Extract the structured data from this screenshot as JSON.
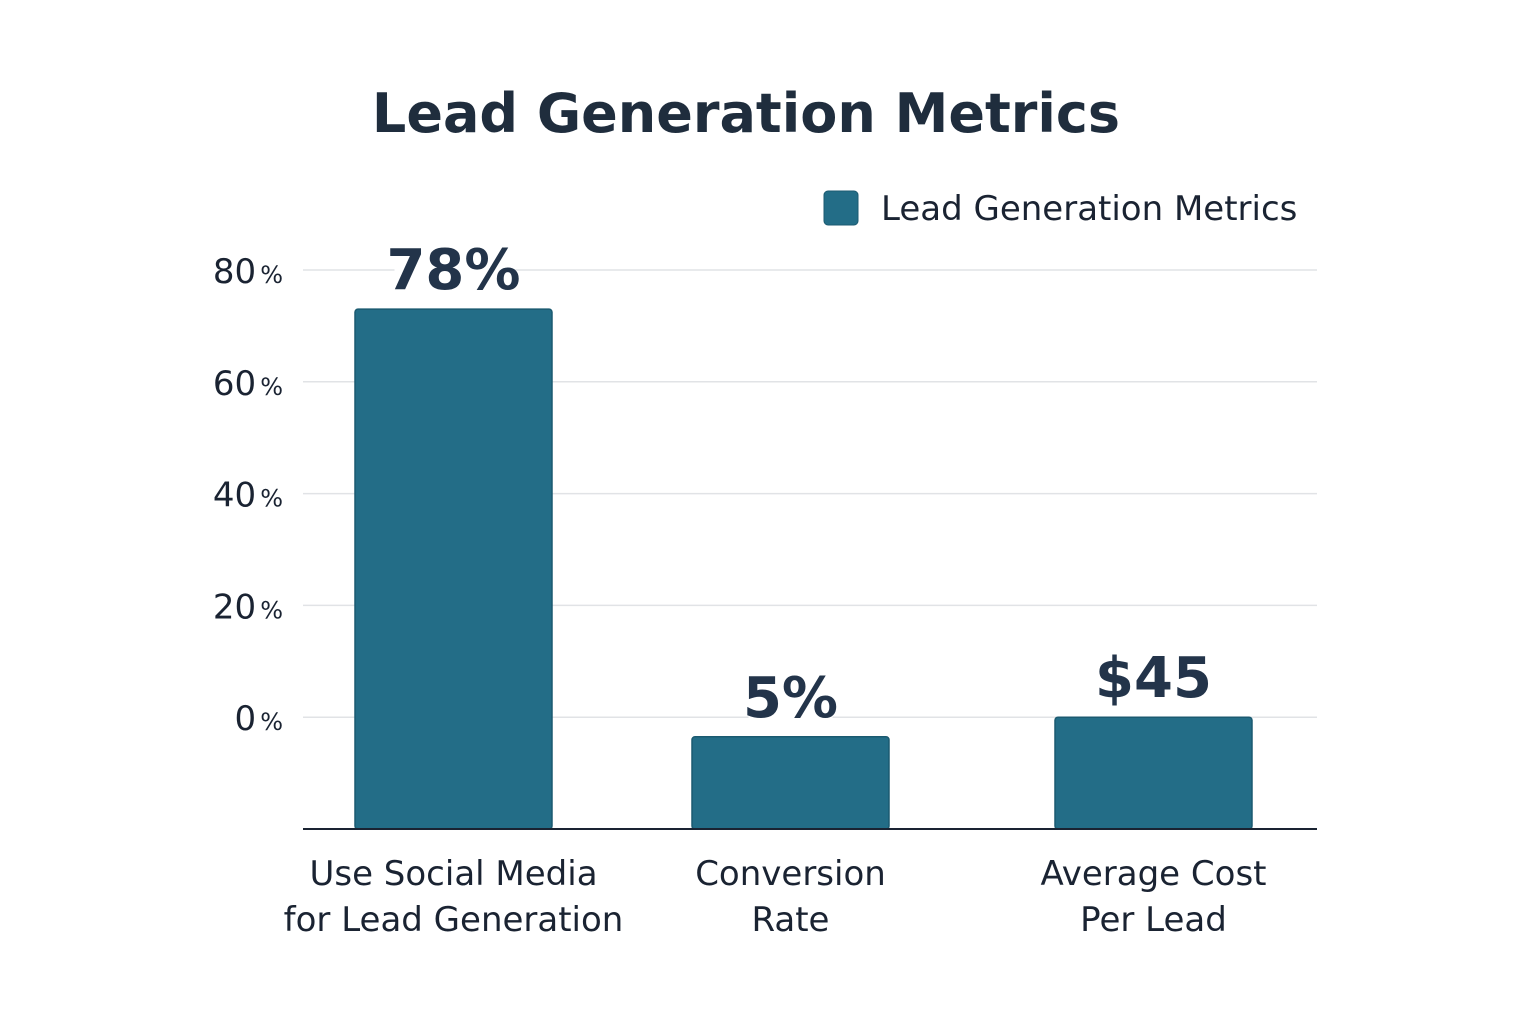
{
  "chart_data": {
    "type": "bar",
    "title": "Lead Generation Metrics",
    "xlabel": "",
    "ylabel": "",
    "ylim": [
      -20,
      80
    ],
    "y_ticks": [
      0,
      20,
      40,
      60,
      80
    ],
    "y_tick_suffix": "%",
    "grid": true,
    "legend": {
      "position": "top-right",
      "entries": [
        "Lead Generation Metrics"
      ]
    },
    "categories": [
      [
        "Use Social Media",
        "for Lead Generation"
      ],
      [
        "Conversion",
        "Rate"
      ],
      [
        "Average Cost",
        "Per Lead"
      ]
    ],
    "series": [
      {
        "name": "Lead Generation Metrics",
        "color": "#236d87",
        "values": [
          78,
          5,
          45
        ],
        "drawn_axis_values": [
          73,
          -3.5,
          0
        ],
        "labels": [
          "78%",
          "5%",
          "$45"
        ]
      }
    ]
  },
  "colors": {
    "bar": "#236d87",
    "bar_edge": "#1b5a70",
    "text": "#1a2332",
    "title": "#1f2d3d",
    "grid": "#e1e3e6"
  }
}
